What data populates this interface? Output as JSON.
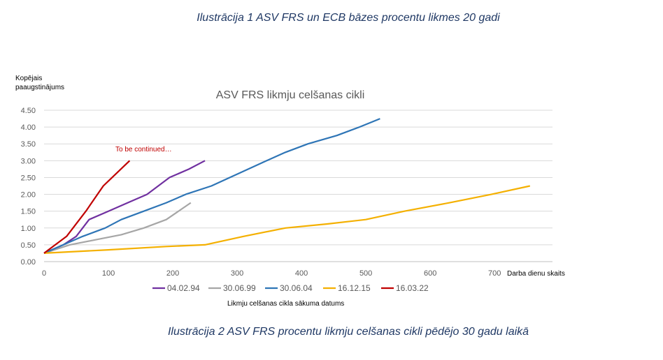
{
  "captions": {
    "top": "Ilustrācija 1 ASV FRS un ECB bāzes procentu likmes 20 gadi",
    "bottom": "Ilustrācija 2 ASV FRS procentu likmju celšanas cikli pēdējo 30 gadu laikā"
  },
  "chart_data": {
    "type": "line",
    "title": "ASV FRS likmju celšanas cikli",
    "ylabel_line1": "Kopējais",
    "ylabel_line2": "paaugstinājums",
    "xlabel": "Darba dienu skaits",
    "legend_title": "Likmju celšanas cikla sākuma datums",
    "annotation": "To be continued…",
    "xlim": [
      0,
      790
    ],
    "ylim": [
      0,
      4.5
    ],
    "xticks": [
      0,
      100,
      200,
      300,
      400,
      500,
      600,
      700
    ],
    "yticks": [
      "0.00",
      "0.50",
      "1.00",
      "1.50",
      "2.00",
      "2.50",
      "3.00",
      "3.50",
      "4.00",
      "4.50"
    ],
    "grid": true,
    "legend_position": "bottom",
    "series": [
      {
        "name": "04.02.94",
        "color": "#7030a0",
        "x": [
          0,
          30,
          50,
          70,
          100,
          130,
          160,
          195,
          225,
          250
        ],
        "y": [
          0.25,
          0.5,
          0.75,
          1.25,
          1.5,
          1.75,
          2.0,
          2.5,
          2.75,
          3.0
        ]
      },
      {
        "name": "30.06.99",
        "color": "#a6a6a6",
        "x": [
          0,
          40,
          80,
          120,
          155,
          190,
          228
        ],
        "y": [
          0.25,
          0.5,
          0.65,
          0.8,
          1.0,
          1.25,
          1.75
        ]
      },
      {
        "name": "30.06.04",
        "color": "#2e75b6",
        "x": [
          0,
          30,
          60,
          95,
          120,
          155,
          190,
          220,
          260,
          300,
          340,
          375,
          410,
          455,
          490,
          522
        ],
        "y": [
          0.25,
          0.5,
          0.75,
          1.0,
          1.25,
          1.5,
          1.75,
          2.0,
          2.25,
          2.6,
          2.95,
          3.25,
          3.5,
          3.75,
          4.0,
          4.25
        ]
      },
      {
        "name": "16.12.15",
        "color": "#f4b000",
        "x": [
          0,
          100,
          190,
          250,
          310,
          375,
          440,
          500,
          560,
          630,
          695,
          755
        ],
        "y": [
          0.25,
          0.35,
          0.45,
          0.5,
          0.75,
          1.0,
          1.12,
          1.25,
          1.5,
          1.75,
          2.0,
          2.25
        ]
      },
      {
        "name": "16.03.22",
        "color": "#c00000",
        "x": [
          0,
          35,
          65,
          92,
          133
        ],
        "y": [
          0.25,
          0.75,
          1.5,
          2.25,
          3.0
        ]
      }
    ]
  }
}
